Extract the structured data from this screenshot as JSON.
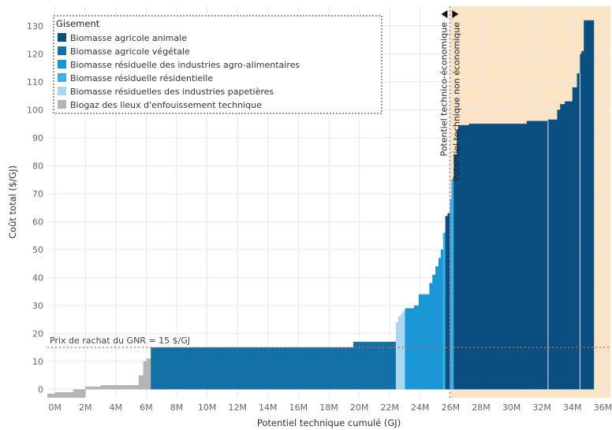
{
  "chart_data": {
    "type": "area",
    "xlabel": "Potentiel technique cumulé (GJ)",
    "ylabel": "Coût total ($/GJ)",
    "xlim": [
      -500000,
      36500000
    ],
    "ylim": [
      -3,
      137
    ],
    "x_ticks": [
      {
        "value": 0,
        "label": "0M"
      },
      {
        "value": 2000000,
        "label": "2M"
      },
      {
        "value": 4000000,
        "label": "4M"
      },
      {
        "value": 6000000,
        "label": "6M"
      },
      {
        "value": 8000000,
        "label": "8M"
      },
      {
        "value": 10000000,
        "label": "10M"
      },
      {
        "value": 12000000,
        "label": "12M"
      },
      {
        "value": 14000000,
        "label": "14M"
      },
      {
        "value": 16000000,
        "label": "16M"
      },
      {
        "value": 18000000,
        "label": "18M"
      },
      {
        "value": 20000000,
        "label": "20M"
      },
      {
        "value": 22000000,
        "label": "22M"
      },
      {
        "value": 24000000,
        "label": "24M"
      },
      {
        "value": 26000000,
        "label": "26M"
      },
      {
        "value": 28000000,
        "label": "28M"
      },
      {
        "value": 30000000,
        "label": "30M"
      },
      {
        "value": 32000000,
        "label": "32M"
      },
      {
        "value": 34000000,
        "label": "34M"
      },
      {
        "value": 36000000,
        "label": "36M"
      }
    ],
    "y_ticks": [
      0,
      10,
      20,
      30,
      40,
      50,
      60,
      70,
      80,
      90,
      100,
      110,
      120,
      130
    ],
    "grid": true,
    "legend": {
      "title": "Gisement",
      "position": "top-left",
      "entries": [
        {
          "name": "Biomasse agricole animale",
          "color": "#0b4e80"
        },
        {
          "name": "Biomasse agricole végétale",
          "color": "#1471a6"
        },
        {
          "name": "Biomasse résiduelle des industries agro-alimentaires",
          "color": "#1a97d4"
        },
        {
          "name": "Biomasse résiduelle résidentielle",
          "color": "#36b2e6"
        },
        {
          "name": "Biomasse résiduelles des industries papetières",
          "color": "#a9d7f2"
        },
        {
          "name": "Biogaz des lieux d'enfouissement technique",
          "color": "#b5b5b5"
        }
      ]
    },
    "threshold": {
      "value": 15,
      "label": "Prix de rachat du GNR = 15 $/GJ",
      "color": "#e05a5a"
    },
    "divider": {
      "x": 25950000,
      "left_label": "Potentiel technico-économique",
      "right_label": "Potentiel technique non économique",
      "shade_color": "#fbe3c6"
    },
    "segments": [
      {
        "start": -500000,
        "end": 0,
        "value": -1.5,
        "series": "Biogaz des lieux d'enfouissement technique"
      },
      {
        "start": 0,
        "end": 1200000,
        "value": -1,
        "series": "Biogaz des lieux d'enfouissement technique"
      },
      {
        "start": 1200000,
        "end": 2000000,
        "value": 0,
        "series": "Biogaz des lieux d'enfouissement technique"
      },
      {
        "start": 2000000,
        "end": 3000000,
        "value": 1,
        "series": "Biogaz des lieux d'enfouissement technique"
      },
      {
        "start": 3000000,
        "end": 5500000,
        "value": 1.5,
        "series": "Biogaz des lieux d'enfouissement technique"
      },
      {
        "start": 5500000,
        "end": 5800000,
        "value": 5,
        "series": "Biogaz des lieux d'enfouissement technique"
      },
      {
        "start": 5800000,
        "end": 6000000,
        "value": 10,
        "series": "Biogaz des lieux d'enfouissement technique"
      },
      {
        "start": 6000000,
        "end": 6300000,
        "value": 11,
        "series": "Biogaz des lieux d'enfouissement technique"
      },
      {
        "start": 6300000,
        "end": 19600000,
        "value": 15,
        "series": "Biomasse agricole végétale"
      },
      {
        "start": 19600000,
        "end": 22400000,
        "value": 17,
        "series": "Biomasse agricole végétale"
      },
      {
        "start": 22400000,
        "end": 22550000,
        "value": 24,
        "series": "Biomasse résiduelles des industries papetières"
      },
      {
        "start": 22550000,
        "end": 22700000,
        "value": 26,
        "series": "Biomasse résiduelles des industries papetières"
      },
      {
        "start": 22700000,
        "end": 22850000,
        "value": 27,
        "series": "Biomasse résiduelles des industries papetières"
      },
      {
        "start": 22850000,
        "end": 23000000,
        "value": 28,
        "series": "Biomasse résiduelles des industries papetières"
      },
      {
        "start": 23000000,
        "end": 23600000,
        "value": 29,
        "series": "Biomasse résiduelle des industries agro-alimentaires"
      },
      {
        "start": 23600000,
        "end": 23900000,
        "value": 30,
        "series": "Biomasse résiduelle des industries agro-alimentaires"
      },
      {
        "start": 23900000,
        "end": 24600000,
        "value": 34,
        "series": "Biomasse résiduelle des industries agro-alimentaires"
      },
      {
        "start": 24600000,
        "end": 24800000,
        "value": 38,
        "series": "Biomasse résiduelle des industries agro-alimentaires"
      },
      {
        "start": 24800000,
        "end": 25000000,
        "value": 41,
        "series": "Biomasse résiduelle des industries agro-alimentaires"
      },
      {
        "start": 25000000,
        "end": 25200000,
        "value": 44,
        "series": "Biomasse résiduelle des industries agro-alimentaires"
      },
      {
        "start": 25200000,
        "end": 25350000,
        "value": 47,
        "series": "Biomasse résiduelle des industries agro-alimentaires"
      },
      {
        "start": 25350000,
        "end": 25500000,
        "value": 50,
        "series": "Biomasse résiduelle des industries agro-alimentaires"
      },
      {
        "start": 25500000,
        "end": 25650000,
        "value": 56,
        "series": "Biomasse résiduelle résidentielle"
      },
      {
        "start": 25650000,
        "end": 25800000,
        "value": 62,
        "series": "Biomasse agricole animale"
      },
      {
        "start": 25800000,
        "end": 25950000,
        "value": 63,
        "series": "Biomasse agricole animale"
      },
      {
        "start": 25950000,
        "end": 26050000,
        "value": 68,
        "series": "Biomasse résiduelle résidentielle"
      },
      {
        "start": 26050000,
        "end": 26200000,
        "value": 75,
        "series": "Biomasse résiduelle résidentielle"
      },
      {
        "start": 26200000,
        "end": 26400000,
        "value": 84,
        "series": "Biomasse agricole animale"
      },
      {
        "start": 26400000,
        "end": 26500000,
        "value": 93,
        "series": "Biomasse agricole animale"
      },
      {
        "start": 26500000,
        "end": 27200000,
        "value": 94.5,
        "series": "Biomasse agricole animale"
      },
      {
        "start": 27200000,
        "end": 28500000,
        "value": 95,
        "series": "Biomasse agricole animale"
      },
      {
        "start": 28500000,
        "end": 31000000,
        "value": 95,
        "series": "Biomasse agricole animale"
      },
      {
        "start": 31000000,
        "end": 32400000,
        "value": 96,
        "series": "Biomasse agricole animale"
      },
      {
        "start": 32400000,
        "end": 33000000,
        "value": 96.5,
        "series": "Biomasse agricole animale"
      },
      {
        "start": 33000000,
        "end": 33200000,
        "value": 100,
        "series": "Biomasse agricole animale"
      },
      {
        "start": 33200000,
        "end": 33500000,
        "value": 102,
        "series": "Biomasse agricole animale"
      },
      {
        "start": 33500000,
        "end": 34000000,
        "value": 103,
        "series": "Biomasse agricole animale"
      },
      {
        "start": 34000000,
        "end": 34300000,
        "value": 108,
        "series": "Biomasse agricole animale"
      },
      {
        "start": 34300000,
        "end": 34500000,
        "value": 113,
        "series": "Biomasse agricole animale"
      },
      {
        "start": 34500000,
        "end": 34600000,
        "value": 120,
        "series": "Biomasse agricole animale"
      },
      {
        "start": 34600000,
        "end": 34750000,
        "value": 121,
        "series": "Biomasse agricole animale"
      },
      {
        "start": 34750000,
        "end": 35400000,
        "value": 132,
        "series": "Biomasse agricole animale"
      }
    ],
    "inner_separators": [
      32400000,
      34500000
    ]
  }
}
